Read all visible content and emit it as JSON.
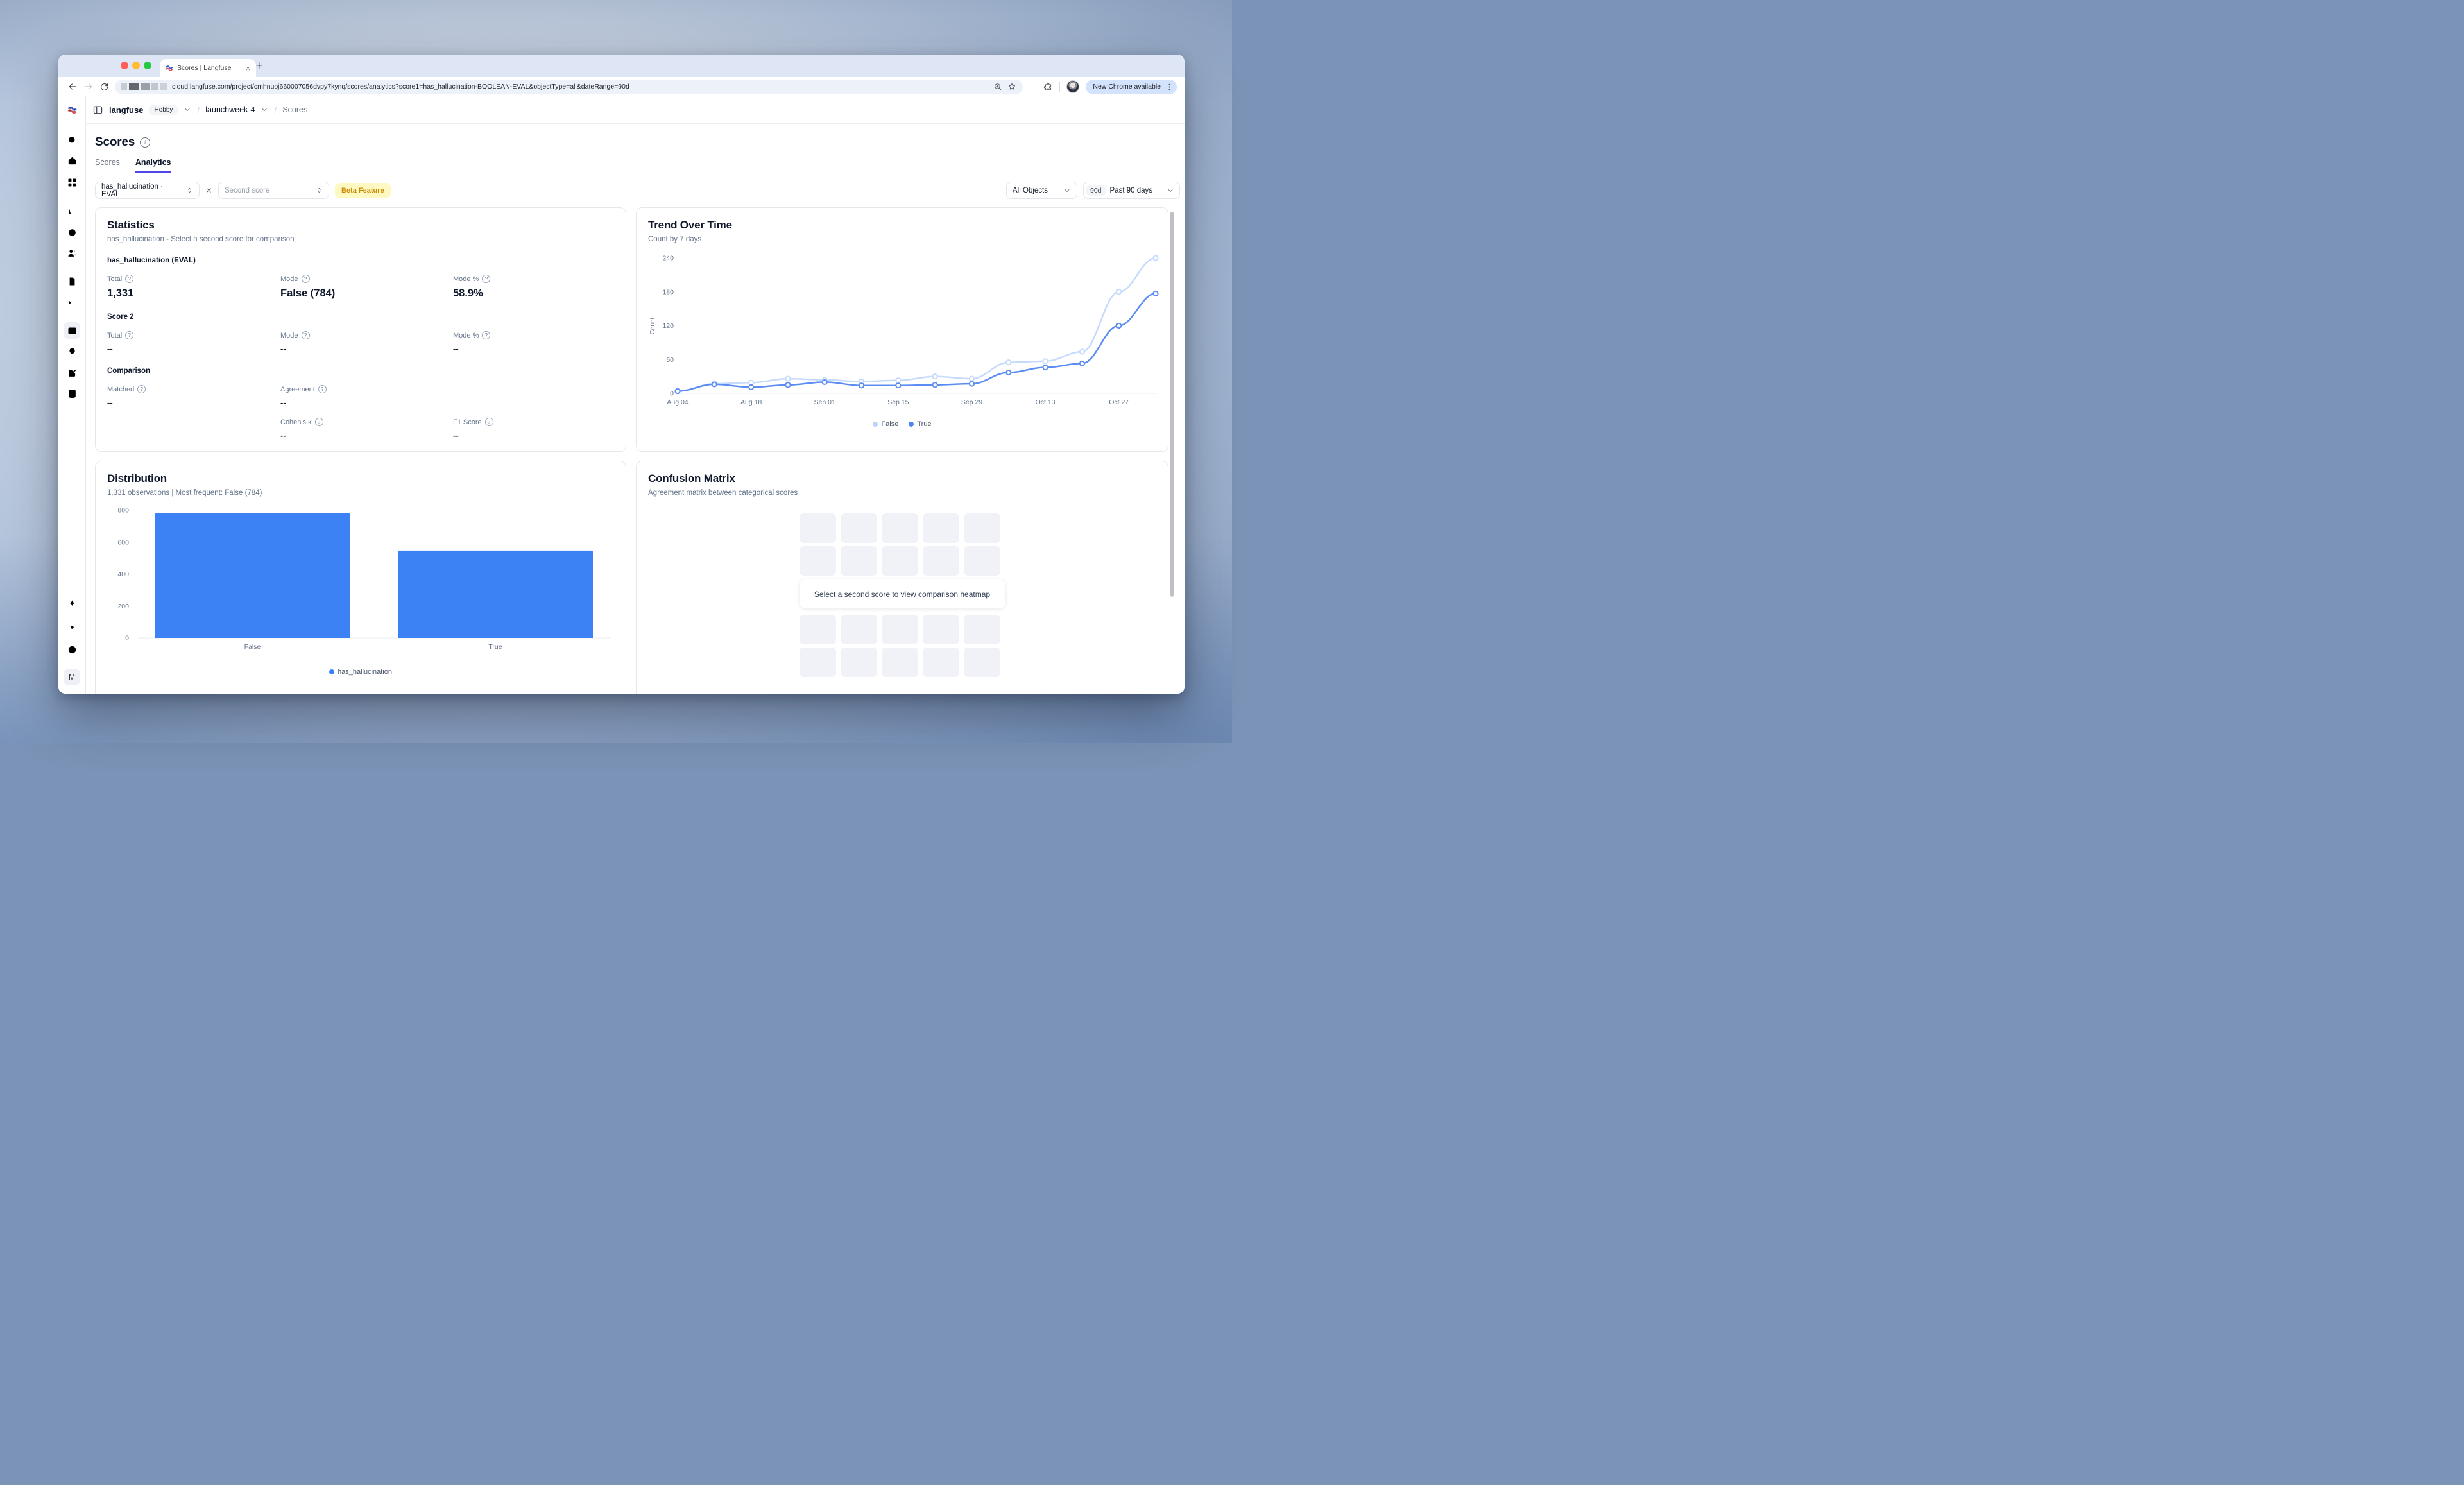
{
  "colors": {
    "accent_blue": "#3d82f4",
    "trend_true": "#5b8cf2",
    "trend_false": "#c6dafc",
    "legend_false_dot": "#b9d4fb",
    "legend_true_dot": "#4c84f4",
    "tab_underline": "#4f46e5",
    "beta_bg": "#fef9c3",
    "beta_text": "#ca8a04"
  },
  "browser": {
    "tab_title": "Scores | Langfuse",
    "url": "cloud.langfuse.com/project/cmhnuoj660007056dvpy7kynq/scores/analytics?score1=has_hallucination-BOOLEAN-EVAL&objectType=all&dateRange=90d",
    "update_button": "New Chrome available"
  },
  "sidebar": {
    "main_icons": [
      "search",
      "home",
      "dashboards",
      "tracing",
      "sessions",
      "users",
      "prompts",
      "playground",
      "scores",
      "evaluators",
      "annotation-queues",
      "datasets"
    ],
    "active_icon": "scores",
    "footer_icons": [
      "whats-new",
      "settings",
      "support"
    ],
    "avatar_label": "M"
  },
  "header": {
    "org": "langfuse",
    "plan_badge": "Hobby",
    "project": "launchweek-4",
    "page": "Scores"
  },
  "page": {
    "title": "Scores",
    "tabs": [
      "Scores",
      "Analytics"
    ],
    "active_tab": "Analytics"
  },
  "filters": {
    "score1": "has_hallucination · EVAL",
    "score2_placeholder": "Second score",
    "beta_badge": "Beta Feature",
    "object_filter": "All Objects",
    "date_range_badge": "90d",
    "date_range": "Past 90 days"
  },
  "statistics": {
    "title": "Statistics",
    "subtitle": "has_hallucination - Select a second score for comparison",
    "sections": [
      {
        "heading": "has_hallucination (EVAL)",
        "size": "large",
        "rows": [
          [
            {
              "col": 1,
              "label": "Total",
              "value": "1,331"
            },
            {
              "col": 2,
              "label": "Mode",
              "value": "False (784)"
            },
            {
              "col": 3,
              "label": "Mode %",
              "value": "58.9%"
            }
          ]
        ]
      },
      {
        "heading": "Score 2",
        "size": "small",
        "rows": [
          [
            {
              "col": 1,
              "label": "Total",
              "value": "--"
            },
            {
              "col": 2,
              "label": "Mode",
              "value": "--"
            },
            {
              "col": 3,
              "label": "Mode %",
              "value": "--"
            }
          ]
        ]
      },
      {
        "heading": "Comparison",
        "size": "small",
        "rows": [
          [
            {
              "col": 1,
              "label": "Matched",
              "value": "--"
            },
            {
              "col": 2,
              "label": "Agreement",
              "value": "--"
            }
          ],
          [
            {
              "col": 2,
              "label": "Cohen's κ",
              "value": "--"
            },
            {
              "col": 3,
              "label": "F1 Score",
              "value": "--"
            }
          ]
        ]
      }
    ]
  },
  "trend": {
    "title": "Trend Over Time",
    "subtitle": "Count by 7 days"
  },
  "distribution": {
    "title": "Distribution",
    "subtitle": "1,331 observations | Most frequent: False (784)",
    "legend": "has_hallucination"
  },
  "confusion": {
    "title": "Confusion Matrix",
    "subtitle": "Agreement matrix between categorical scores",
    "placeholder_message": "Select a second score to view comparison heatmap",
    "grid": {
      "cols": 5,
      "rows": 4
    }
  },
  "chart_data": [
    {
      "id": "trend",
      "type": "line",
      "title": "Trend Over Time",
      "subtitle": "Count by 7 days",
      "ylabel": "Count",
      "xlabel": "",
      "categories": [
        "Aug 04",
        "Aug 11",
        "Aug 18",
        "Aug 25",
        "Sep 01",
        "Sep 08",
        "Sep 15",
        "Sep 22",
        "Sep 29",
        "Oct 06",
        "Oct 13",
        "Oct 20",
        "Oct 27",
        "Nov 03"
      ],
      "x_tick_labels": [
        "Aug 04",
        "Aug 18",
        "Sep 01",
        "Sep 15",
        "Sep 29",
        "Oct 13",
        "Oct 27"
      ],
      "ylim": [
        0,
        240
      ],
      "yticks": [
        0,
        60,
        120,
        180,
        240
      ],
      "grid": false,
      "legend_position": "bottom",
      "series": [
        {
          "name": "False",
          "color": "#c6dafc",
          "dot": "#b9d4fb",
          "values": [
            4,
            17,
            19,
            26,
            24,
            21,
            23,
            30,
            26,
            55,
            57,
            74,
            180,
            240
          ]
        },
        {
          "name": "True",
          "color": "#5b8cf2",
          "dot": "#4c84f4",
          "values": [
            4,
            16,
            11,
            15,
            20,
            14,
            14,
            15,
            17,
            37,
            46,
            53,
            120,
            177
          ]
        }
      ]
    },
    {
      "id": "distribution",
      "type": "bar",
      "title": "Distribution",
      "subtitle": "1,331 observations | Most frequent: False (784)",
      "categories": [
        "False",
        "True"
      ],
      "values": [
        784,
        547
      ],
      "series_name": "has_hallucination",
      "color": "#3d82f4",
      "ylim": [
        0,
        800
      ],
      "yticks": [
        0,
        200,
        400,
        600,
        800
      ],
      "grid": false,
      "legend_position": "bottom"
    }
  ]
}
